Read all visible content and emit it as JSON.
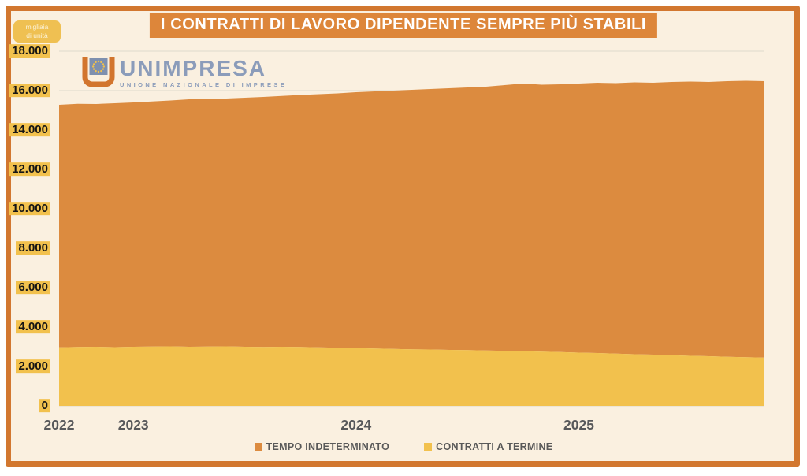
{
  "header": {
    "title": "I CONTRATTI DI LAVORO DIPENDENTE SEMPRE PIÙ STABILI"
  },
  "unit_badge": {
    "line1": "migliaia",
    "line2": "di unità"
  },
  "logo": {
    "name": "UNIMPRESA",
    "tagline": "UNIONE NAZIONALE DI IMPRESE"
  },
  "colors": {
    "background": "#FAF0E0",
    "frame_border": "#D2772F",
    "title_bar": "#DD863A",
    "area_orange": "#DC8B3F",
    "area_yellow": "#F2C14D",
    "tick_highlight": "#F2C14D",
    "gridline": "#E8E1D3",
    "axis_text": "#58595B",
    "logo_blue": "#8B9CBA",
    "logo_orange": "#D2752E"
  },
  "legend": {
    "items": [
      {
        "label": "TEMPO INDETERMINATO",
        "color": "#DC8B3F"
      },
      {
        "label": "CONTRATTI A TERMINE",
        "color": "#F2C14D"
      }
    ]
  },
  "chart_data": {
    "type": "area",
    "stacked": true,
    "title": "I CONTRATTI DI LAVORO DIPENDENTE SEMPRE PIÙ STABILI",
    "ylabel": "migliaia di unità",
    "xlabel": "",
    "ylim": [
      0,
      18000
    ],
    "grid": "horizontal-major",
    "legend_position": "bottom",
    "x": [
      "2022-09",
      "2022-10",
      "2022-11",
      "2022-12",
      "2023-01",
      "2023-02",
      "2023-03",
      "2023-04",
      "2023-05",
      "2023-06",
      "2023-07",
      "2023-08",
      "2023-09",
      "2023-10",
      "2023-11",
      "2023-12",
      "2024-01",
      "2024-02",
      "2024-03",
      "2024-04",
      "2024-05",
      "2024-06",
      "2024-07",
      "2024-08",
      "2024-09",
      "2024-10",
      "2024-11",
      "2024-12",
      "2025-01",
      "2025-02",
      "2025-03",
      "2025-04",
      "2025-05",
      "2025-06",
      "2025-07",
      "2025-08",
      "2025-09",
      "2025-10",
      "2025-11"
    ],
    "series": [
      {
        "name": "TEMPO INDETERMINATO",
        "color": "#DC8B3F",
        "values": [
          12310,
          12340,
          12320,
          12380,
          12400,
          12440,
          12480,
          12560,
          12550,
          12580,
          12640,
          12690,
          12730,
          12790,
          12850,
          12910,
          12990,
          13050,
          13110,
          13170,
          13220,
          13280,
          13330,
          13390,
          13490,
          13590,
          13550,
          13590,
          13660,
          13720,
          13730,
          13800,
          13800,
          13870,
          13920,
          13920,
          13990,
          14030,
          14030
        ]
      },
      {
        "name": "CONTRATTI A TERMINE",
        "color": "#F2C14D",
        "values": [
          2970,
          2990,
          3000,
          2980,
          3000,
          3010,
          3020,
          3000,
          3010,
          3020,
          3000,
          2990,
          3000,
          2990,
          2970,
          2950,
          2930,
          2910,
          2890,
          2870,
          2860,
          2840,
          2830,
          2810,
          2790,
          2770,
          2750,
          2730,
          2700,
          2680,
          2650,
          2620,
          2600,
          2570,
          2540,
          2520,
          2490,
          2470,
          2450
        ]
      }
    ],
    "yticks": [
      {
        "value": 0,
        "label": "0"
      },
      {
        "value": 2000,
        "label": "2.000"
      },
      {
        "value": 4000,
        "label": "4.000"
      },
      {
        "value": 6000,
        "label": "6.000"
      },
      {
        "value": 8000,
        "label": "8.000"
      },
      {
        "value": 10000,
        "label": "10.000"
      },
      {
        "value": 12000,
        "label": "12.000"
      },
      {
        "value": 14000,
        "label": "14.000"
      },
      {
        "value": 16000,
        "label": "16.000"
      },
      {
        "value": 18000,
        "label": "18.000"
      }
    ],
    "x_year_ticks": [
      {
        "label": "2022",
        "index": 0
      },
      {
        "label": "2023",
        "index": 4
      },
      {
        "label": "2024",
        "index": 16
      },
      {
        "label": "2025",
        "index": 28
      }
    ]
  }
}
